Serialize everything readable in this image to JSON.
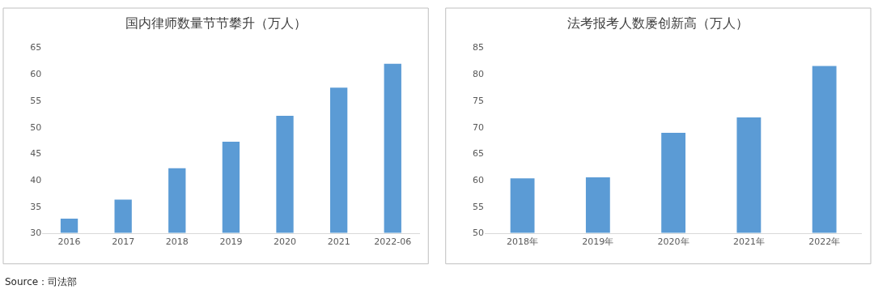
{
  "chart_data": [
    {
      "type": "bar",
      "title": "国内律师数量节节攀升（万人）",
      "categories": [
        "2016",
        "2017",
        "2018",
        "2019",
        "2020",
        "2021",
        "2022-06"
      ],
      "values": [
        32.7,
        36.3,
        42.2,
        47.2,
        52.1,
        57.4,
        61.9
      ],
      "color": "#5b9bd5",
      "ylim": [
        30,
        65
      ],
      "yticks": [
        30,
        35,
        40,
        45,
        50,
        55,
        60,
        65
      ],
      "grid": false,
      "annotations": [
        "Source：司法部"
      ]
    },
    {
      "type": "bar",
      "title": "法考报考人数屡创新高（万人）",
      "categories": [
        "2018年",
        "2019年",
        "2020年",
        "2021年",
        "2022年"
      ],
      "values": [
        60.3,
        60.5,
        68.9,
        71.8,
        81.5
      ],
      "color": "#5b9bd5",
      "ylim": [
        50,
        85
      ],
      "yticks": [
        50,
        55,
        60,
        65,
        70,
        75,
        80,
        85
      ],
      "grid": false
    }
  ]
}
